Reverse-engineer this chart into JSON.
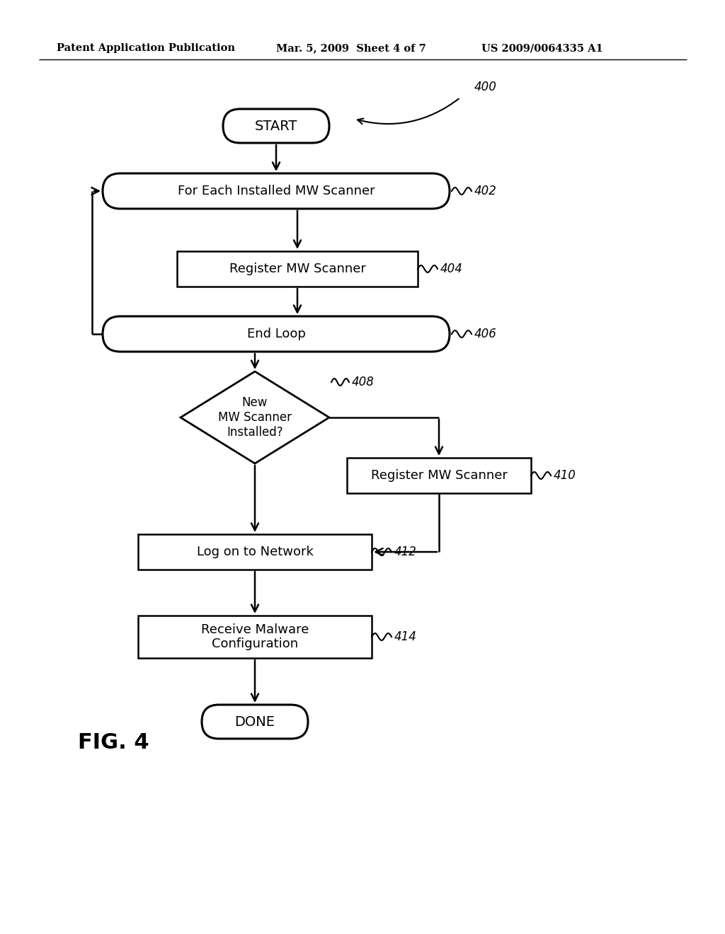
{
  "bg_color": "#ffffff",
  "header_left": "Patent Application Publication",
  "header_mid": "Mar. 5, 2009  Sheet 4 of 7",
  "header_right": "US 2009/0064335 A1",
  "fig_label": "FIG. 4"
}
